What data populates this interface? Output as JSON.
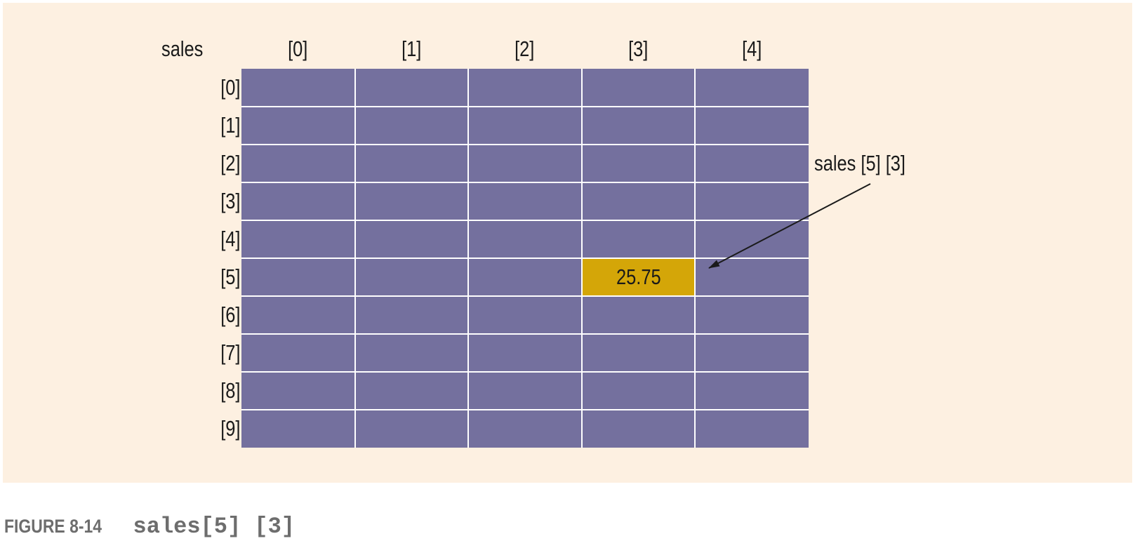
{
  "array_name": "sales",
  "column_headers": [
    "[0]",
    "[1]",
    "[2]",
    "[3]",
    "[4]"
  ],
  "row_headers": [
    "[0]",
    "[1]",
    "[2]",
    "[3]",
    "[4]",
    "[5]",
    "[6]",
    "[7]",
    "[8]",
    "[9]"
  ],
  "highlighted_cell": {
    "row": 5,
    "col": 3,
    "value": "25.75"
  },
  "callout_label": "sales [5] [3]",
  "caption": {
    "label": "FIGURE 8-14",
    "code": "sales[5] [3]"
  },
  "colors": {
    "background": "#fdf0e1",
    "cell": "#74709e",
    "highlight": "#d4a608",
    "grid_line": "#ffffff",
    "caption_text": "#6d6d6d"
  }
}
